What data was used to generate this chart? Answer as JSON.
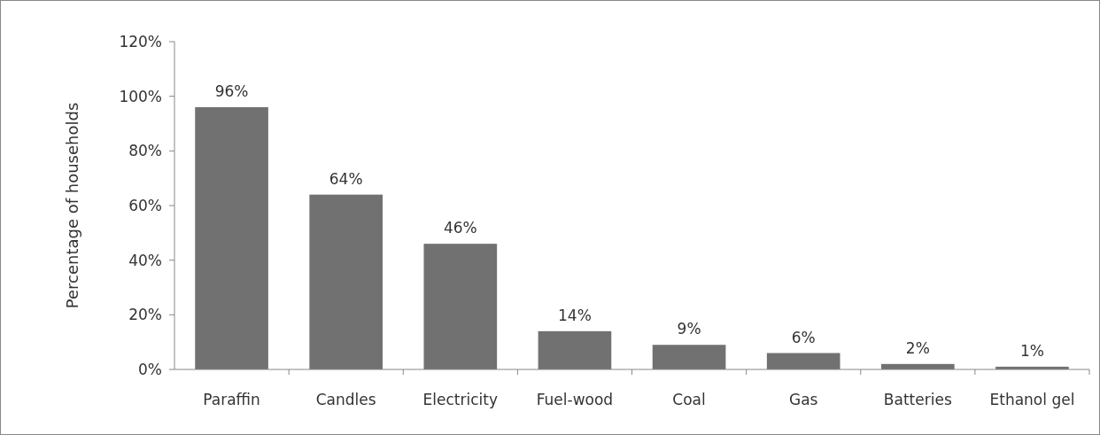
{
  "chart_data": {
    "type": "bar",
    "ylabel": "Percentage of households",
    "categories": [
      "Paraffin",
      "Candles",
      "Electricity",
      "Fuel-wood",
      "Coal",
      "Gas",
      "Batteries",
      "Ethanol gel"
    ],
    "values": [
      96,
      64,
      46,
      14,
      9,
      6,
      2,
      1
    ],
    "value_labels": [
      "96%",
      "64%",
      "46%",
      "14%",
      "9%",
      "6%",
      "2%",
      "1%"
    ],
    "color": "#717171",
    "ylim": [
      0,
      120
    ],
    "yticks": [
      {
        "value": 0,
        "label": "0%"
      },
      {
        "value": 20,
        "label": "20%"
      },
      {
        "value": 40,
        "label": "40%"
      },
      {
        "value": 60,
        "label": "60%"
      },
      {
        "value": 80,
        "label": "80%"
      },
      {
        "value": 100,
        "label": "100%"
      },
      {
        "value": 120,
        "label": "120%"
      }
    ],
    "grid": false
  }
}
